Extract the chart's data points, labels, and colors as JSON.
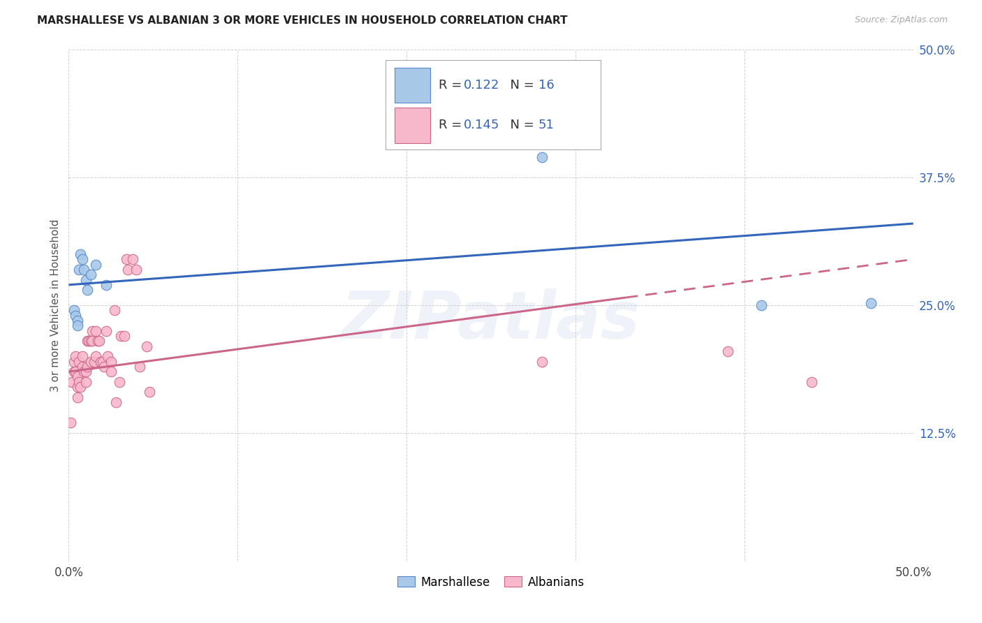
{
  "title": "MARSHALLESE VS ALBANIAN 3 OR MORE VEHICLES IN HOUSEHOLD CORRELATION CHART",
  "source": "Source: ZipAtlas.com",
  "ylabel": "3 or more Vehicles in Household",
  "xlim": [
    0.0,
    0.5
  ],
  "ylim": [
    0.0,
    0.5
  ],
  "xtick_vals": [
    0.0,
    0.1,
    0.2,
    0.3,
    0.4,
    0.5
  ],
  "ytick_vals": [
    0.0,
    0.125,
    0.25,
    0.375,
    0.5
  ],
  "marshallese_R": "0.122",
  "marshallese_N": "16",
  "albanian_R": "0.145",
  "albanian_N": "51",
  "marshallese_fill": "#a8c8e8",
  "marshallese_edge": "#5588cc",
  "albanian_fill": "#f8b8cc",
  "albanian_edge": "#cc6688",
  "marshallese_line_color": "#3366bb",
  "albanian_line_color": "#cc6688",
  "watermark": "ZIPatlas",
  "grid_color": "#cccccc",
  "marshallese_x": [
    0.003,
    0.004,
    0.005,
    0.005,
    0.006,
    0.007,
    0.008,
    0.009,
    0.01,
    0.011,
    0.013,
    0.016,
    0.022,
    0.28,
    0.41,
    0.475
  ],
  "marshallese_y": [
    0.245,
    0.24,
    0.235,
    0.23,
    0.285,
    0.3,
    0.295,
    0.285,
    0.275,
    0.265,
    0.28,
    0.29,
    0.27,
    0.395,
    0.25,
    0.252
  ],
  "albanian_x": [
    0.001,
    0.002,
    0.003,
    0.003,
    0.004,
    0.004,
    0.005,
    0.005,
    0.005,
    0.006,
    0.006,
    0.007,
    0.008,
    0.008,
    0.009,
    0.01,
    0.01,
    0.011,
    0.011,
    0.012,
    0.013,
    0.013,
    0.014,
    0.014,
    0.015,
    0.016,
    0.016,
    0.017,
    0.018,
    0.019,
    0.02,
    0.021,
    0.022,
    0.023,
    0.025,
    0.025,
    0.027,
    0.028,
    0.03,
    0.031,
    0.033,
    0.034,
    0.035,
    0.038,
    0.04,
    0.042,
    0.046,
    0.048,
    0.28,
    0.39,
    0.44
  ],
  "albanian_y": [
    0.135,
    0.175,
    0.185,
    0.195,
    0.185,
    0.2,
    0.16,
    0.17,
    0.18,
    0.175,
    0.195,
    0.17,
    0.19,
    0.2,
    0.185,
    0.185,
    0.175,
    0.215,
    0.19,
    0.215,
    0.215,
    0.195,
    0.225,
    0.215,
    0.195,
    0.225,
    0.2,
    0.215,
    0.215,
    0.195,
    0.195,
    0.19,
    0.225,
    0.2,
    0.195,
    0.185,
    0.245,
    0.155,
    0.175,
    0.22,
    0.22,
    0.295,
    0.285,
    0.295,
    0.285,
    0.19,
    0.21,
    0.165,
    0.195,
    0.205,
    0.175
  ],
  "legend_rect_m_color": "#a8c8e8",
  "legend_rect_m_edge": "#5588cc",
  "legend_rect_a_color": "#f8b8cc",
  "legend_rect_a_edge": "#cc6688"
}
